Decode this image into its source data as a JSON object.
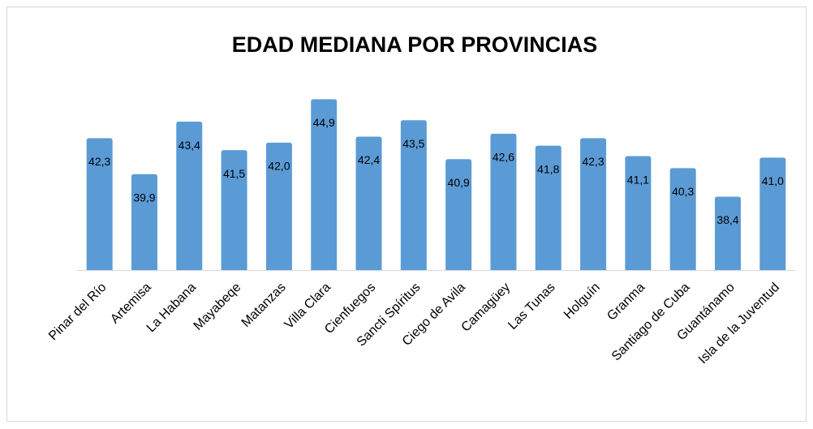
{
  "chart_data": {
    "type": "bar",
    "title": "EDAD MEDIANA POR PROVINCIAS",
    "categories": [
      "Pinar del Río",
      "Artemisa",
      "La Habana",
      "Mayabeqe",
      "Matanzas",
      "Villa Clara",
      "Cienfuegos",
      "Sancti Spíritus",
      "Ciego de Avila",
      "Camagüey",
      "Las Tunas",
      "Holguín",
      "Granma",
      "Santiago de Cuba",
      "Guantánamo",
      "Isla de la Juventud"
    ],
    "values": [
      42.3,
      39.9,
      43.4,
      41.5,
      42.0,
      44.9,
      42.4,
      43.5,
      40.9,
      42.6,
      41.8,
      42.3,
      41.1,
      40.3,
      38.4,
      41.0
    ],
    "value_labels": [
      "42,3",
      "39,9",
      "43,4",
      "41,5",
      "42,0",
      "44,9",
      "42,4",
      "43,5",
      "40,9",
      "42,6",
      "41,8",
      "42,3",
      "41,1",
      "40,3",
      "38,4",
      "41,0"
    ],
    "color": "#5b9bd5",
    "ylim": [
      33.5,
      46
    ]
  }
}
